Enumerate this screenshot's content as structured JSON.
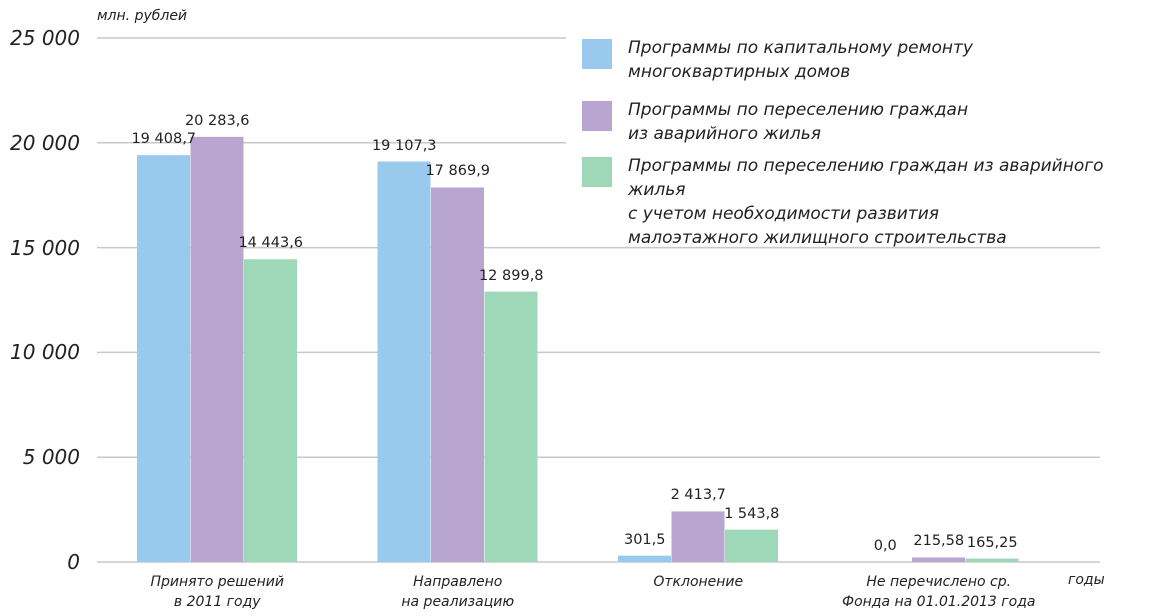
{
  "chart_data": {
    "type": "bar",
    "y_label": "млн. рублей",
    "x_label": "годы",
    "categories": [
      "Принято решений\nв 2011  году",
      "Направлено\nна реализацию",
      "Отклонение",
      "Не перечислено ср.\nФонда на 01.01.2013 года"
    ],
    "series": [
      {
        "name": "Программы по капитальному ремонту\nмногоквартирных домов",
        "color": "#99c9ec",
        "values": [
          19408.7,
          19107.3,
          301.5,
          0.0
        ],
        "value_labels": [
          "19 408,7",
          "19 107,3",
          "301,5",
          "0,0"
        ]
      },
      {
        "name": "Программы по переселению граждан\nиз аварийного жилья",
        "color": "#b9a6d0",
        "values": [
          20283.6,
          17869.9,
          2413.7,
          215.58
        ],
        "value_labels": [
          "20 283,6",
          "17 869,9",
          "2 413,7",
          "215,58"
        ]
      },
      {
        "name": "Программы по переселению граждан из аварийного жилья\nс учетом необходимости развития\nмалоэтажного жилищного строительства",
        "color": "#9fd8b8",
        "values": [
          14443.6,
          12899.8,
          1543.8,
          165.25
        ],
        "value_labels": [
          "14 443,6",
          "12 899,8",
          "1 543,8",
          "165,25"
        ]
      }
    ],
    "ylim": [
      0,
      25000
    ],
    "yticks": [
      0,
      {
        "value": 5000,
        "label": "5 000"
      },
      {
        "value": 10000,
        "label": "10 000"
      },
      {
        "value": 15000,
        "label": "15 000"
      },
      {
        "value": 20000,
        "label": "20 000"
      },
      {
        "value": 25000,
        "label": "25 000"
      }
    ],
    "grid": true
  }
}
